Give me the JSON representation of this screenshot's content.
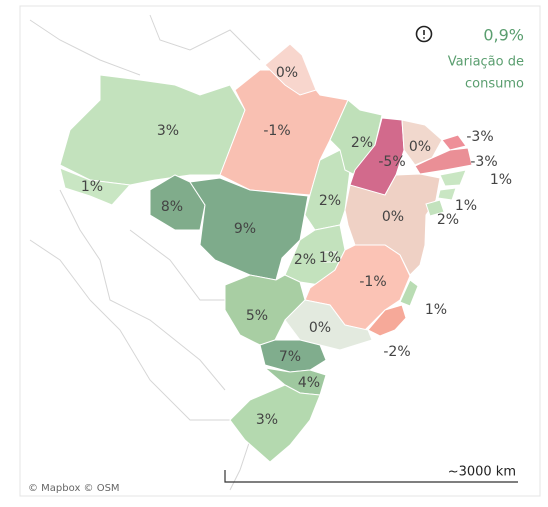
{
  "legend": {
    "value": "0,9%",
    "caption_line1": "Variação de",
    "caption_line2": "consumo"
  },
  "attribution": "© Mapbox © OSM",
  "scale": "~3000 km",
  "regions": [
    {
      "label": "3%",
      "color": "#c3e2bd"
    },
    {
      "label": "1%",
      "color": "#c9e6c3"
    },
    {
      "label": "-1%",
      "color": "#f9c0b2"
    },
    {
      "label": "0%",
      "color": "#f8d6cd"
    },
    {
      "label": "8%",
      "color": "#80ac8b"
    },
    {
      "label": "9%",
      "color": "#7eab8b"
    },
    {
      "label": "2%",
      "color": "#c3e2bd"
    },
    {
      "label": "2%",
      "color": "#bfe0b9"
    },
    {
      "label": "-5%",
      "color": "#d26a8c"
    },
    {
      "label": "0%",
      "color": "#f1d8cd"
    },
    {
      "label": "-3%",
      "color": "#ee8f98"
    },
    {
      "label": "-3%",
      "color": "#ea8f96"
    },
    {
      "label": "1%",
      "color": "#c9e6c3"
    },
    {
      "label": "1%",
      "color": "#c9e6c3"
    },
    {
      "label": "0%",
      "color": "#efd1c5"
    },
    {
      "label": "2%",
      "color": "#c3e2bd"
    },
    {
      "label": "2%",
      "color": "#c3e2bd"
    },
    {
      "label": "1%",
      "color": "#c9e6c3"
    },
    {
      "label": "-1%",
      "color": "#fbc3b5"
    },
    {
      "label": "1%",
      "color": "#b9dcb3"
    },
    {
      "label": "-2%",
      "color": "#f6a999"
    },
    {
      "label": "5%",
      "color": "#a8cea3"
    },
    {
      "label": "0%",
      "color": "#e3eadf"
    },
    {
      "label": "7%",
      "color": "#80ad8d"
    },
    {
      "label": "4%",
      "color": "#9fc89f"
    },
    {
      "label": "3%",
      "color": "#b4d9af"
    }
  ]
}
